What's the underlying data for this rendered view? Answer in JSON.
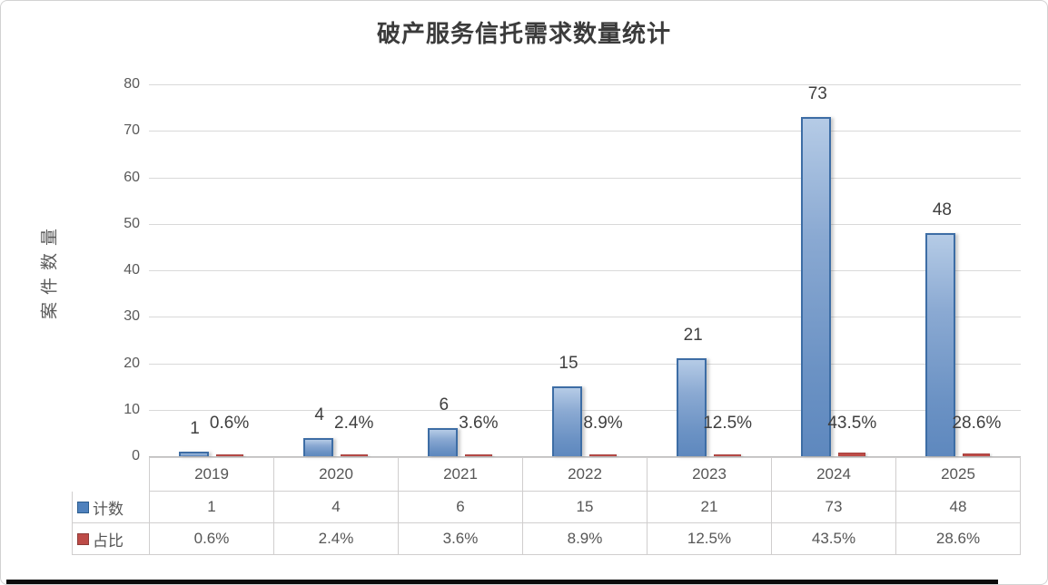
{
  "window": {
    "background": "#ffffff",
    "border_color": "#d2d2d2",
    "bottom_strip_color": "#0b0b0b"
  },
  "chart_data": {
    "type": "bar",
    "title": "破产服务信托需求数量统计",
    "ylabel": "案件数量",
    "xlabel": "",
    "categories": [
      "2019",
      "2020",
      "2021",
      "2022",
      "2023",
      "2024",
      "2025"
    ],
    "series": [
      {
        "name": "计数",
        "color": "#4f81bd",
        "border_color": "#3d6da5",
        "values": [
          1,
          4,
          6,
          15,
          21,
          73,
          48
        ],
        "data_labels": [
          "1",
          "4",
          "6",
          "15",
          "21",
          "73",
          "48"
        ]
      },
      {
        "name": "占比",
        "color": "#bd4b47",
        "border_color": "#a8423f",
        "values_percent": [
          0.6,
          2.4,
          3.6,
          8.9,
          12.5,
          43.5,
          28.6
        ],
        "data_labels": [
          "0.6%",
          "2.4%",
          "3.6%",
          "8.9%",
          "12.5%",
          "43.5%",
          "28.6%"
        ]
      }
    ],
    "ylim": [
      0,
      80
    ],
    "yticks": [
      0,
      10,
      20,
      30,
      40,
      50,
      60,
      70,
      80
    ],
    "gridlines": true,
    "legend_position": "data-table-left",
    "data_table": {
      "rows": [
        {
          "key": "计数",
          "swatch_color": "#4f81bd",
          "values": [
            "1",
            "4",
            "6",
            "15",
            "21",
            "73",
            "48"
          ]
        },
        {
          "key": "占比",
          "swatch_color": "#bd4b47",
          "values": [
            "0.6%",
            "2.4%",
            "3.6%",
            "8.9%",
            "12.5%",
            "43.5%",
            "28.6%"
          ]
        }
      ]
    }
  },
  "colors": {
    "grid": "#d9d9d9",
    "axis": "#bfbfbf",
    "tick_text": "#595959",
    "data_label_text": "#3f3f3f",
    "table_border": "#d0cece",
    "table_text": "#565656",
    "title_text": "#3b3b3b"
  }
}
